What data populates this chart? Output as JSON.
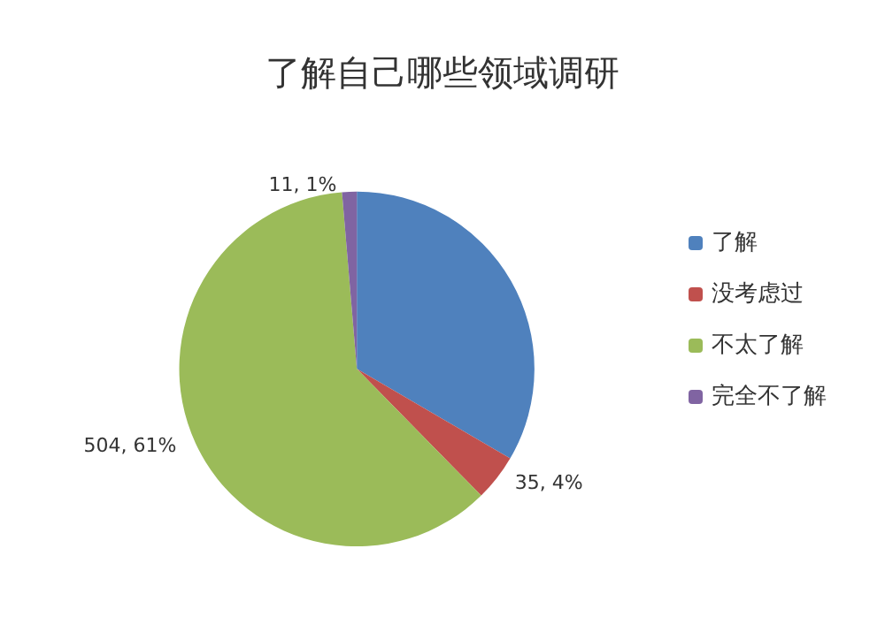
{
  "chart_data": {
    "type": "pie",
    "title": "了解自己哪些领域调研",
    "categories": [
      "了解",
      "没考虑过",
      "不太了解",
      "完全不了解"
    ],
    "values": [
      276,
      35,
      504,
      11
    ],
    "value_labels": [
      null,
      "35, 4%",
      "504, 61%",
      "11, 1%"
    ],
    "colors": [
      "#4f81bd",
      "#c0504d",
      "#9bbb59",
      "#8064a2"
    ],
    "legend": "right"
  }
}
